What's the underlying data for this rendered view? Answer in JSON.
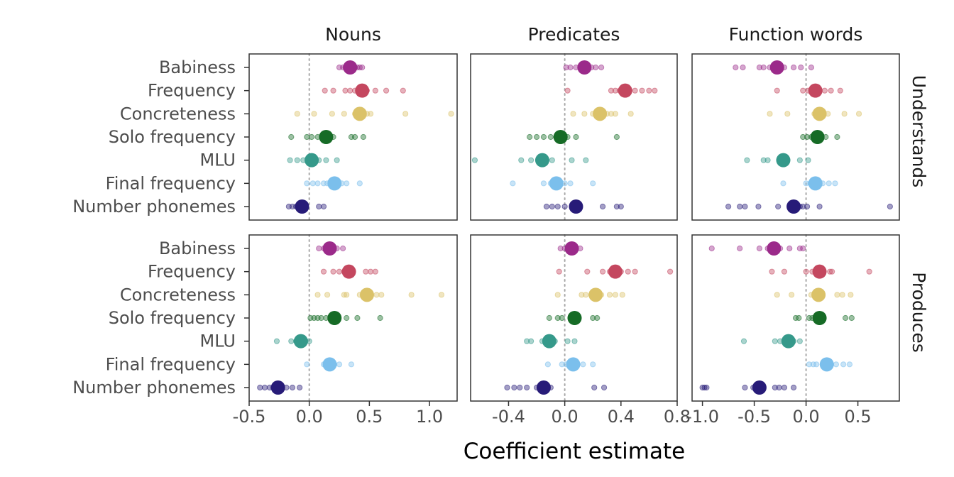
{
  "chart_data": {
    "type": "scatter",
    "xlabel": "Coefficient estimate",
    "ylabel": "",
    "predictors": [
      "Babiness",
      "Frequency",
      "Concreteness",
      "Solo frequency",
      "MLU",
      "Final frequency",
      "Number phonemes"
    ],
    "colors": {
      "Babiness": "#9b2a8a",
      "Frequency": "#c4475f",
      "Concreteness": "#dbc268",
      "Solo frequency": "#166b26",
      "MLU": "#35998a",
      "Final frequency": "#7bbfec",
      "Number phonemes": "#271b78"
    },
    "columns": [
      {
        "name": "Nouns",
        "xlim": [
          -0.5,
          1.23
        ],
        "ticks": [
          -0.5,
          0.0,
          0.5,
          1.0
        ],
        "tick_labels": [
          "-0.5",
          "0.0",
          "0.5",
          "1.0"
        ]
      },
      {
        "name": "Predicates",
        "xlim": [
          -0.67,
          0.8
        ],
        "ticks": [
          -0.4,
          0.0,
          0.4,
          0.8
        ],
        "tick_labels": [
          "-0.4",
          "0.0",
          "0.4",
          "0.8"
        ]
      },
      {
        "name": "Function words",
        "xlim": [
          -1.1,
          0.9
        ],
        "ticks": [
          -1.0,
          -0.5,
          0.0,
          0.5
        ],
        "tick_labels": [
          "-1.0",
          "-0.5",
          "0.0",
          "0.5"
        ]
      }
    ],
    "rows": [
      "Understands",
      "Produces"
    ],
    "reference_line": 0,
    "panels": [
      {
        "row": "Understands",
        "column": "Nouns",
        "points": {
          "Babiness": {
            "estimate": 0.34,
            "individual": [
              0.25,
              0.28,
              0.3,
              0.32,
              0.36,
              0.38,
              0.4,
              0.42,
              0.44
            ]
          },
          "Frequency": {
            "estimate": 0.44,
            "individual": [
              0.13,
              0.2,
              0.3,
              0.34,
              0.38,
              0.48,
              0.55,
              0.64,
              0.78
            ]
          },
          "Concreteness": {
            "estimate": 0.42,
            "individual": [
              -0.1,
              0.04,
              0.19,
              0.29,
              0.38,
              0.44,
              0.48,
              0.51,
              0.8,
              1.18
            ]
          },
          "Solo frequency": {
            "estimate": 0.14,
            "individual": [
              -0.15,
              -0.02,
              0.02,
              0.07,
              0.12,
              0.2,
              0.35,
              0.38,
              0.45
            ]
          },
          "MLU": {
            "estimate": 0.02,
            "individual": [
              -0.16,
              -0.1,
              -0.05,
              0.0,
              0.04,
              0.08,
              0.14,
              0.23
            ]
          },
          "Final frequency": {
            "estimate": 0.21,
            "individual": [
              -0.02,
              0.03,
              0.07,
              0.12,
              0.15,
              0.18,
              0.22,
              0.27,
              0.31,
              0.42
            ]
          },
          "Number phonemes": {
            "estimate": -0.06,
            "individual": [
              -0.17,
              -0.14,
              -0.11,
              -0.08,
              -0.04,
              0.08,
              0.12
            ]
          }
        }
      },
      {
        "row": "Understands",
        "column": "Predicates",
        "points": {
          "Babiness": {
            "estimate": 0.14,
            "individual": [
              0.01,
              0.04,
              0.08,
              0.11,
              0.16,
              0.19,
              0.22,
              0.26
            ]
          },
          "Frequency": {
            "estimate": 0.43,
            "individual": [
              0.02,
              0.33,
              0.36,
              0.39,
              0.46,
              0.5,
              0.55,
              0.6,
              0.64
            ]
          },
          "Concreteness": {
            "estimate": 0.25,
            "individual": [
              0.06,
              0.14,
              0.2,
              0.24,
              0.3,
              0.33,
              0.36,
              0.47
            ]
          },
          "Solo frequency": {
            "estimate": -0.03,
            "individual": [
              -0.25,
              -0.2,
              -0.15,
              -0.1,
              -0.06,
              -0.01,
              0.02,
              0.08,
              0.37
            ]
          },
          "MLU": {
            "estimate": -0.16,
            "individual": [
              -0.64,
              -0.31,
              -0.24,
              -0.19,
              -0.14,
              -0.09,
              0.05,
              0.15
            ]
          },
          "Final frequency": {
            "estimate": -0.06,
            "individual": [
              -0.37,
              -0.15,
              -0.1,
              -0.04,
              0.0,
              0.04,
              0.2
            ]
          },
          "Number phonemes": {
            "estimate": 0.08,
            "individual": [
              -0.13,
              -0.09,
              -0.05,
              0.0,
              0.05,
              0.27,
              0.37,
              0.4
            ]
          }
        }
      },
      {
        "row": "Understands",
        "column": "Function words",
        "points": {
          "Babiness": {
            "estimate": -0.28,
            "individual": [
              -0.68,
              -0.61,
              -0.45,
              -0.41,
              -0.35,
              -0.21,
              -0.12,
              -0.05,
              0.05
            ]
          },
          "Frequency": {
            "estimate": 0.09,
            "individual": [
              -0.28,
              -0.03,
              0.02,
              0.13,
              0.18,
              0.24,
              0.33
            ]
          },
          "Concreteness": {
            "estimate": 0.13,
            "individual": [
              -0.35,
              -0.18,
              0.08,
              0.16,
              0.21,
              0.37,
              0.51
            ]
          },
          "Solo frequency": {
            "estimate": 0.11,
            "individual": [
              -0.03,
              0.01,
              0.05,
              0.14,
              0.19,
              0.3
            ]
          },
          "MLU": {
            "estimate": -0.22,
            "individual": [
              -0.57,
              -0.41,
              -0.37,
              -0.26,
              -0.18,
              -0.06,
              0.02
            ]
          },
          "Final frequency": {
            "estimate": 0.09,
            "individual": [
              -0.22,
              0.0,
              0.04,
              0.12,
              0.16,
              0.22,
              0.28
            ]
          },
          "Number phonemes": {
            "estimate": -0.12,
            "individual": [
              -0.75,
              -0.64,
              -0.59,
              -0.46,
              -0.27,
              -0.06,
              -0.03,
              0.01,
              0.13,
              0.81
            ]
          }
        }
      },
      {
        "row": "Produces",
        "column": "Nouns",
        "points": {
          "Babiness": {
            "estimate": 0.17,
            "individual": [
              0.08,
              0.12,
              0.15,
              0.2,
              0.23,
              0.28
            ]
          },
          "Frequency": {
            "estimate": 0.33,
            "individual": [
              0.12,
              0.2,
              0.25,
              0.29,
              0.36,
              0.47,
              0.51,
              0.55
            ]
          },
          "Concreteness": {
            "estimate": 0.48,
            "individual": [
              0.07,
              0.15,
              0.29,
              0.31,
              0.42,
              0.5,
              0.56,
              0.6,
              0.85,
              1.1
            ]
          },
          "Solo frequency": {
            "estimate": 0.21,
            "individual": [
              0.01,
              0.04,
              0.07,
              0.1,
              0.14,
              0.18,
              0.24,
              0.31,
              0.4,
              0.59
            ]
          },
          "MLU": {
            "estimate": -0.07,
            "individual": [
              -0.27,
              -0.15,
              -0.11,
              -0.03,
              0.0
            ]
          },
          "Final frequency": {
            "estimate": 0.17,
            "individual": [
              -0.02,
              0.12,
              0.16,
              0.21,
              0.25,
              0.35
            ]
          },
          "Number phonemes": {
            "estimate": -0.26,
            "individual": [
              -0.41,
              -0.37,
              -0.33,
              -0.3,
              -0.23,
              -0.19,
              -0.14,
              -0.08
            ]
          }
        }
      },
      {
        "row": "Produces",
        "column": "Predicates",
        "points": {
          "Babiness": {
            "estimate": 0.05,
            "individual": [
              -0.03,
              0.0,
              0.03,
              0.08,
              0.11
            ]
          },
          "Frequency": {
            "estimate": 0.36,
            "individual": [
              -0.04,
              0.16,
              0.27,
              0.32,
              0.4,
              0.45,
              0.5,
              0.75
            ]
          },
          "Concreteness": {
            "estimate": 0.22,
            "individual": [
              -0.05,
              0.12,
              0.15,
              0.19,
              0.26,
              0.32,
              0.36,
              0.41
            ]
          },
          "Solo frequency": {
            "estimate": 0.07,
            "individual": [
              -0.11,
              -0.05,
              -0.02,
              0.04,
              0.1,
              0.2,
              0.23
            ]
          },
          "MLU": {
            "estimate": -0.11,
            "individual": [
              -0.27,
              -0.24,
              -0.16,
              -0.07,
              0.02,
              0.07
            ]
          },
          "Final frequency": {
            "estimate": 0.06,
            "individual": [
              -0.12,
              -0.02,
              0.01,
              0.04,
              0.09,
              0.13,
              0.2
            ]
          },
          "Number phonemes": {
            "estimate": -0.15,
            "individual": [
              -0.41,
              -0.36,
              -0.32,
              -0.27,
              -0.2,
              -0.1,
              0.21,
              0.28
            ]
          }
        }
      },
      {
        "row": "Produces",
        "column": "Function words",
        "points": {
          "Babiness": {
            "estimate": -0.31,
            "individual": [
              -0.91,
              -0.64,
              -0.45,
              -0.37,
              -0.25,
              -0.16,
              -0.06,
              -0.03
            ]
          },
          "Frequency": {
            "estimate": 0.13,
            "individual": [
              -0.33,
              -0.21,
              0.0,
              0.06,
              0.17,
              0.23,
              0.25,
              0.61
            ]
          },
          "Concreteness": {
            "estimate": 0.12,
            "individual": [
              -0.28,
              -0.14,
              0.05,
              0.08,
              0.15,
              0.3,
              0.35,
              0.43
            ]
          },
          "Solo frequency": {
            "estimate": 0.13,
            "individual": [
              -0.1,
              -0.07,
              0.03,
              0.06,
              0.17,
              0.38,
              0.44
            ]
          },
          "MLU": {
            "estimate": -0.17,
            "individual": [
              -0.6,
              -0.3,
              -0.25,
              -0.12,
              -0.06
            ]
          },
          "Final frequency": {
            "estimate": 0.2,
            "individual": [
              0.03,
              0.07,
              0.1,
              0.16,
              0.24,
              0.29,
              0.36,
              0.42
            ]
          },
          "Number phonemes": {
            "estimate": -0.45,
            "individual": [
              -1.0,
              -0.98,
              -0.96,
              -0.59,
              -0.51,
              -0.3,
              -0.26,
              -0.21,
              -0.12
            ]
          }
        }
      }
    ]
  }
}
